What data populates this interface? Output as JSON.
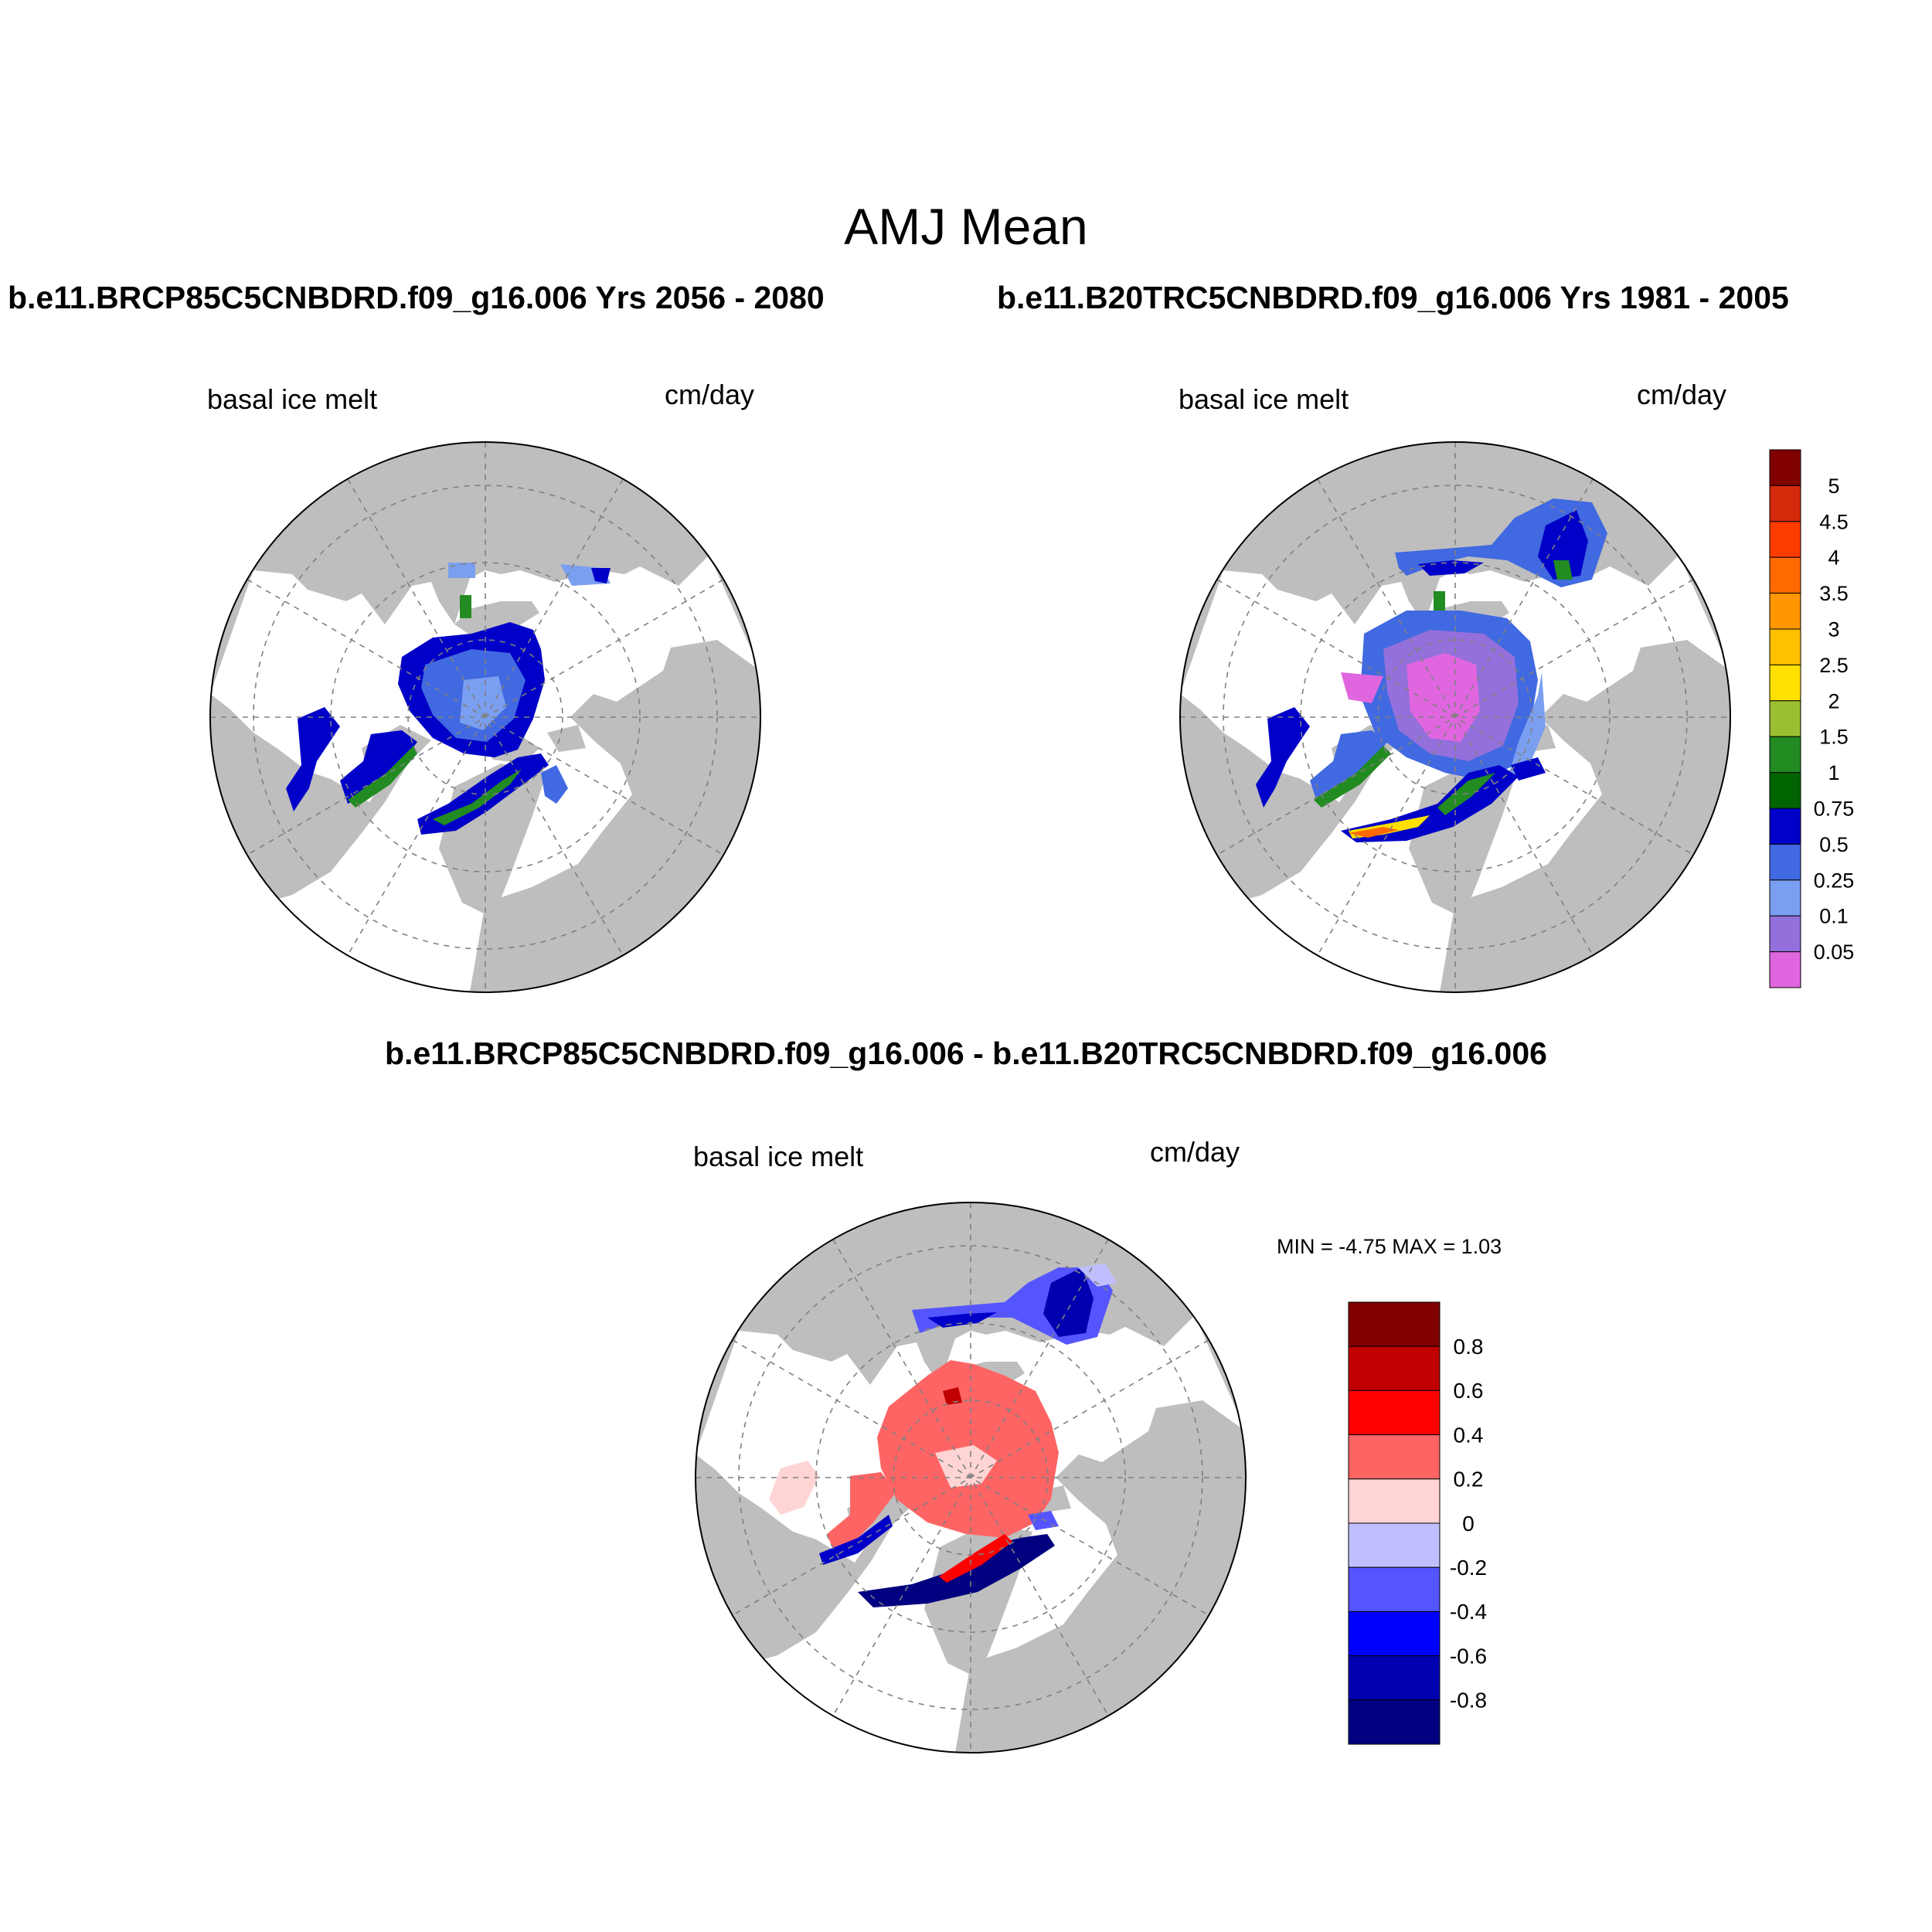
{
  "title": "AMJ Mean",
  "case_titles": {
    "left": "b.e11.BRCP85C5CNBDRD.f09_g16.006  Yrs 2056 - 2080",
    "right": "b.e11.B20TRC5CNBDRD.f09_g16.006  Yrs 1981 - 2005"
  },
  "difference_title": "b.e11.BRCP85C5CNBDRD.f09_g16.006 - b.e11.B20TRC5CNBDRD.f09_g16.006",
  "panels": {
    "left": {
      "variable": "basal ice melt",
      "units": "cm/day"
    },
    "right": {
      "variable": "basal ice melt",
      "units": "cm/day"
    },
    "diff": {
      "variable": "basal ice melt",
      "units": "cm/day",
      "minmax": "MIN =  -4.75 MAX =   1.03"
    }
  },
  "colorbars": {
    "absolute": {
      "labels": [
        "5",
        "4.5",
        "4",
        "3.5",
        "3",
        "2.5",
        "2",
        "1.5",
        "1",
        "0.75",
        "0.5",
        "0.25",
        "0.1",
        "0.05"
      ],
      "colors": [
        "#800000",
        "#d42a0c",
        "#ff3c00",
        "#ff6a00",
        "#ff9600",
        "#ffc000",
        "#ffe000",
        "#9cbf32",
        "#228b22",
        "#006400",
        "#0000c8",
        "#4169e1",
        "#7b9ff0",
        "#9370db",
        "#e066e0"
      ]
    },
    "difference": {
      "labels": [
        "0.8",
        "0.6",
        "0.4",
        "0.2",
        "0",
        "-0.2",
        "-0.4",
        "-0.6",
        "-0.8"
      ],
      "colors": [
        "#800000",
        "#c00000",
        "#ff0000",
        "#ff6464",
        "#ffd4d4",
        "#bfbfff",
        "#5555ff",
        "#0000ff",
        "#0000b0",
        "#000080"
      ]
    }
  },
  "map_colors": {
    "land": "#bebebe",
    "ocean": "#ffffff",
    "grid": "#808080"
  }
}
